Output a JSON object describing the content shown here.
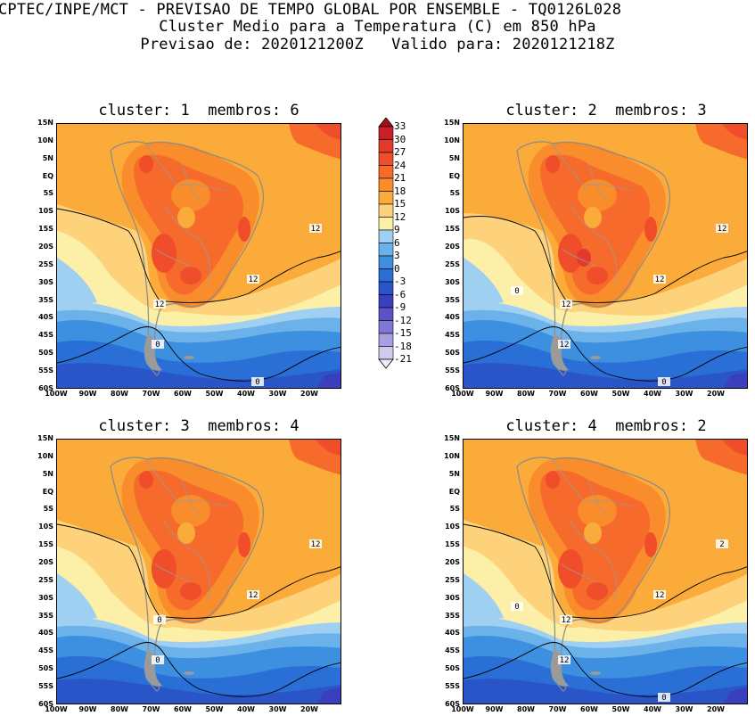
{
  "header": {
    "line1": "CPTEC/INPE/MCT - PREVISAO DE TEMPO GLOBAL POR ENSEMBLE - TQ0126L028",
    "line2": "Cluster Medio para a Temperatura (C) em 850 hPa",
    "line3": "Previsao de: 2020121200Z   Valido para: 2020121218Z"
  },
  "panels": [
    {
      "title": "cluster: 1  membros: 6"
    },
    {
      "title": "cluster: 2  membros: 3"
    },
    {
      "title": "cluster: 3  membros: 4"
    },
    {
      "title": "cluster: 4  membros: 2"
    }
  ],
  "lat_labels": [
    "15N",
    "10N",
    "5N",
    "EQ",
    "5S",
    "10S",
    "15S",
    "20S",
    "25S",
    "30S",
    "35S",
    "40S",
    "45S",
    "50S",
    "55S",
    "60S"
  ],
  "lon_labels": [
    "100W",
    "90W",
    "80W",
    "70W",
    "60W",
    "50W",
    "40W",
    "30W",
    "20W"
  ],
  "colorbar": {
    "labels": [
      "33",
      "30",
      "27",
      "24",
      "21",
      "18",
      "15",
      "12",
      "9",
      "6",
      "3",
      "0",
      "-3",
      "-6",
      "-9",
      "-12",
      "-15",
      "-18",
      "-21"
    ],
    "colors": [
      "#a50f15",
      "#c8202a",
      "#e33b2b",
      "#f04e2a",
      "#f66a2b",
      "#f98d2b",
      "#fbab3a",
      "#fdd27a",
      "#fcefa8",
      "#9fd0f2",
      "#6bb1ea",
      "#3d8fe0",
      "#2a6fd6",
      "#2a55c8",
      "#3a3fbe",
      "#5b52c8",
      "#7f76d6",
      "#a7a0e2",
      "#cfcaf0",
      "#ecebf8"
    ]
  },
  "contour_labels": {
    "p1": [
      "12",
      "12",
      "12",
      "0",
      "0"
    ],
    "p2": [
      "12",
      "12",
      "12",
      "12",
      "0",
      "0"
    ],
    "p3": [
      "12",
      "12",
      "0",
      "0"
    ],
    "p4": [
      "2",
      "12",
      "12",
      "12",
      "0",
      "0"
    ]
  }
}
